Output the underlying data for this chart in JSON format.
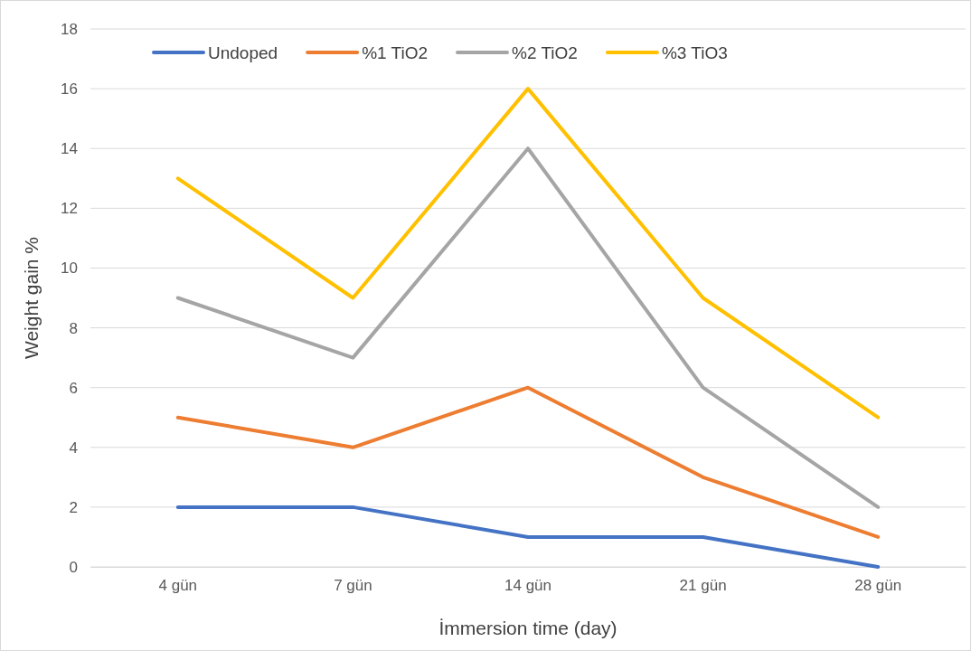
{
  "chart_data": {
    "type": "line",
    "xlabel": "İmmersion time (day)",
    "ylabel": "Weight gain  %",
    "categories": [
      "4 gün",
      "7 gün",
      "14 gün",
      "21 gün",
      "28 gün"
    ],
    "series": [
      {
        "name": "Undoped",
        "color": "#4472c4",
        "values": [
          2,
          2,
          1,
          1,
          0
        ]
      },
      {
        "name": "%1 TiO2",
        "color": "#ed7d31",
        "values": [
          5,
          4,
          6,
          3,
          1
        ]
      },
      {
        "name": "%2 TiO2",
        "color": "#a5a5a5",
        "values": [
          9,
          7,
          14,
          6,
          2
        ]
      },
      {
        "name": "%3 TiO3",
        "color": "#ffc000",
        "values": [
          13,
          9,
          16,
          9,
          5
        ]
      }
    ],
    "ylim": [
      0,
      18
    ],
    "yticks": [
      0,
      2,
      4,
      6,
      8,
      10,
      12,
      14,
      16,
      18
    ],
    "grid": "y",
    "legend": "top",
    "marker": "none",
    "line_style": "solid"
  }
}
